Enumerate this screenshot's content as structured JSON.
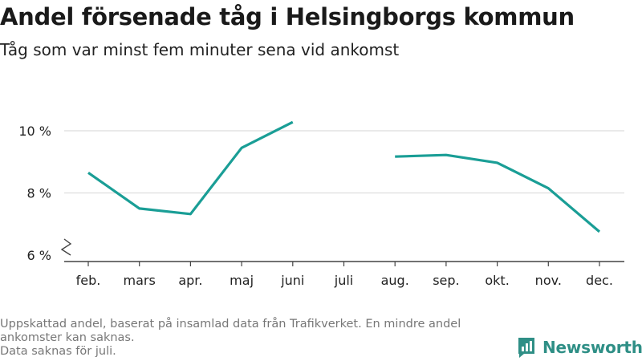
{
  "header": {
    "title": "Andel försenade tåg i Helsingborgs kommun",
    "subtitle": "Tåg som var minst fem minuter sena vid ankomst"
  },
  "footnote": {
    "line1": "Uppskattad andel, baserat på insamlad data från Trafikverket. En mindre andel",
    "line2": "ankomster kan saknas.",
    "line3": "Data saknas för juli."
  },
  "brand": {
    "name": "Newsworthy",
    "icon": "newsworthy-logo-icon"
  },
  "colors": {
    "line": "#1a9e96",
    "grid": "#dddddd",
    "axis": "#444444",
    "brand": "#2f8f86"
  },
  "chart_data": {
    "type": "line",
    "categories": [
      "feb.",
      "mars",
      "apr.",
      "maj",
      "juni",
      "juli",
      "aug.",
      "sep.",
      "okt.",
      "nov.",
      "dec."
    ],
    "series": [
      {
        "values": [
          8.65,
          7.5,
          7.32,
          9.45,
          10.28,
          null,
          9.17,
          9.22,
          8.97,
          8.15,
          6.75
        ]
      }
    ],
    "yticks": [
      6,
      8,
      10
    ],
    "ytick_labels": [
      "6 %",
      "8 %",
      "10 %"
    ],
    "ylim": [
      6,
      11
    ],
    "y_axis_break": true,
    "grid": true,
    "xlabel": "",
    "ylabel": ""
  }
}
